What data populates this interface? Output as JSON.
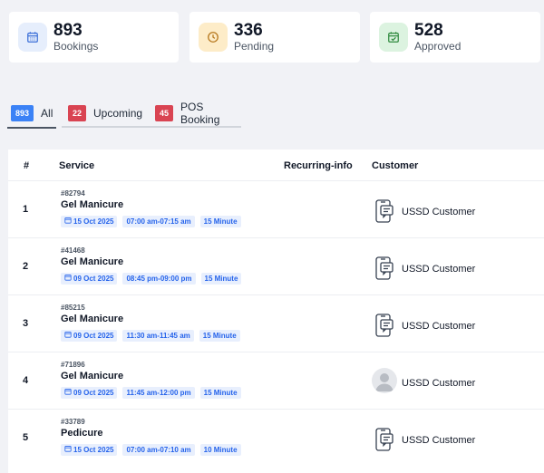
{
  "stats": [
    {
      "value": "893",
      "label": "Bookings",
      "icon": "calendar-icon",
      "icon_color": "#3b6fd8",
      "icon_bg": "#e6eefc"
    },
    {
      "value": "336",
      "label": "Pending",
      "icon": "clock-icon",
      "icon_color": "#b7791f",
      "icon_bg": "#fdecc8"
    },
    {
      "value": "528",
      "label": "Approved",
      "icon": "calendar-check-icon",
      "icon_color": "#2f8a3e",
      "icon_bg": "#dcf3e0"
    }
  ],
  "tabs": [
    {
      "count": "893",
      "label": "All",
      "badge_color": "#3b82f6",
      "active": true
    },
    {
      "count": "22",
      "label": "Upcoming",
      "badge_color": "#d94452",
      "active": false
    },
    {
      "count": "45",
      "label": "POS Booking",
      "badge_color": "#d94452",
      "active": false
    }
  ],
  "table": {
    "headers": {
      "num": "#",
      "service": "Service",
      "recurring": "Recurring-info",
      "customer": "Customer"
    },
    "rows": [
      {
        "num": "1",
        "booking_id": "#82794",
        "service": "Gel Manicure",
        "date": "15 Oct 2025",
        "time": "07:00 am-07:15 am",
        "duration": "15 Minute",
        "customer": "USSD Customer",
        "customer_icon": "phone-message-icon"
      },
      {
        "num": "2",
        "booking_id": "#41468",
        "service": "Gel Manicure",
        "date": "09 Oct 2025",
        "time": "08:45 pm-09:00 pm",
        "duration": "15 Minute",
        "customer": "USSD Customer",
        "customer_icon": "phone-message-icon"
      },
      {
        "num": "3",
        "booking_id": "#85215",
        "service": "Gel Manicure",
        "date": "09 Oct 2025",
        "time": "11:30 am-11:45 am",
        "duration": "15 Minute",
        "customer": "USSD Customer",
        "customer_icon": "phone-message-icon"
      },
      {
        "num": "4",
        "booking_id": "#71896",
        "service": "Gel Manicure",
        "date": "09 Oct 2025",
        "time": "11:45 am-12:00 pm",
        "duration": "15 Minute",
        "customer": "USSD Customer",
        "customer_icon": "avatar"
      },
      {
        "num": "5",
        "booking_id": "#33789",
        "service": "Pedicure",
        "date": "15 Oct 2025",
        "time": "07:00 am-07:10 am",
        "duration": "10 Minute",
        "customer": "USSD Customer",
        "customer_icon": "phone-message-icon"
      }
    ]
  }
}
